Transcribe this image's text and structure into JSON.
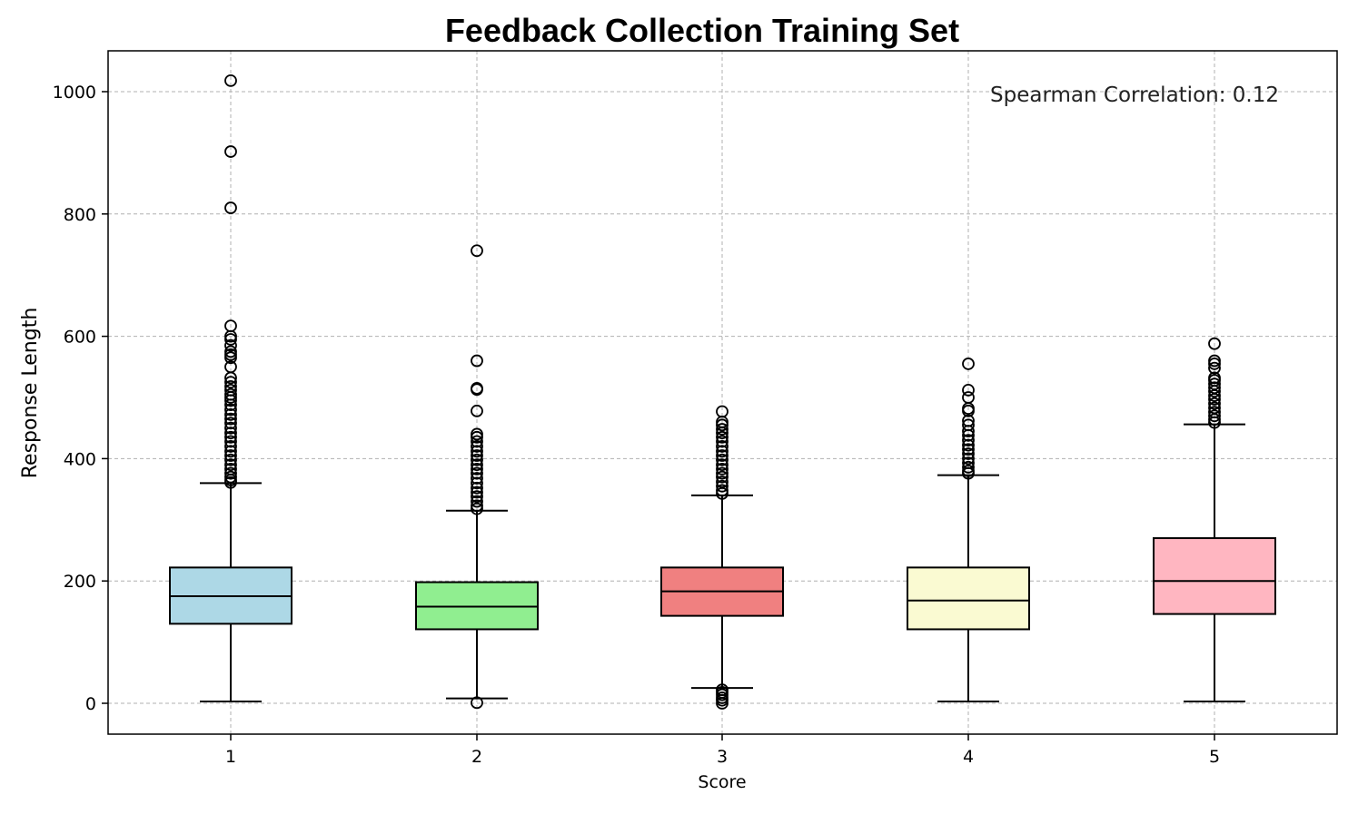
{
  "chart_data": {
    "type": "box",
    "title": "Feedback Collection Training Set",
    "xlabel": "Score",
    "ylabel": "Response Length",
    "ylim": [
      -50,
      1067
    ],
    "yticks": [
      0,
      200,
      400,
      600,
      800,
      1000
    ],
    "grid": true,
    "annotation": "Spearman Correlation: 0.12",
    "categories": [
      "1",
      "2",
      "3",
      "4",
      "5"
    ],
    "colors": [
      "#add8e6",
      "#90ee90",
      "#f08080",
      "#fafad2",
      "#ffb6c1"
    ],
    "boxes": [
      {
        "label": "1",
        "whisker_low": 3,
        "q1": 130,
        "median": 175,
        "q3": 222,
        "whisker_high": 360,
        "outliers": [
          1018,
          902,
          810,
          617,
          600,
          595,
          585,
          575,
          570,
          565,
          550,
          532,
          525,
          518,
          512,
          505,
          500,
          495,
          488,
          480,
          472,
          465,
          458,
          450,
          442,
          435,
          428,
          420,
          412,
          405,
          398,
          390,
          383,
          376,
          370,
          365,
          361
        ]
      },
      {
        "label": "2",
        "whisker_low": 8,
        "q1": 121,
        "median": 158,
        "q3": 198,
        "whisker_high": 315,
        "outliers": [
          740,
          560,
          515,
          513,
          478,
          440,
          435,
          428,
          420,
          412,
          405,
          398,
          390,
          383,
          376,
          368,
          360,
          352,
          345,
          338,
          330,
          323,
          318,
          1
        ]
      },
      {
        "label": "3",
        "whisker_low": 25,
        "q1": 143,
        "median": 183,
        "q3": 222,
        "whisker_high": 340,
        "outliers": [
          477,
          460,
          455,
          448,
          442,
          435,
          428,
          420,
          412,
          405,
          398,
          390,
          383,
          376,
          370,
          362,
          355,
          348,
          343,
          22,
          18,
          14,
          9,
          5,
          0
        ]
      },
      {
        "label": "4",
        "whisker_low": 3,
        "q1": 121,
        "median": 168,
        "q3": 222,
        "whisker_high": 373,
        "outliers": [
          555,
          512,
          500,
          482,
          478,
          462,
          455,
          445,
          438,
          430,
          422,
          415,
          408,
          400,
          393,
          386,
          380,
          376
        ]
      },
      {
        "label": "5",
        "whisker_low": 3,
        "q1": 146,
        "median": 200,
        "q3": 270,
        "whisker_high": 456,
        "outliers": [
          588,
          560,
          555,
          548,
          532,
          528,
          522,
          516,
          510,
          503,
          497,
          490,
          483,
          476,
          470,
          464,
          459
        ]
      }
    ]
  }
}
